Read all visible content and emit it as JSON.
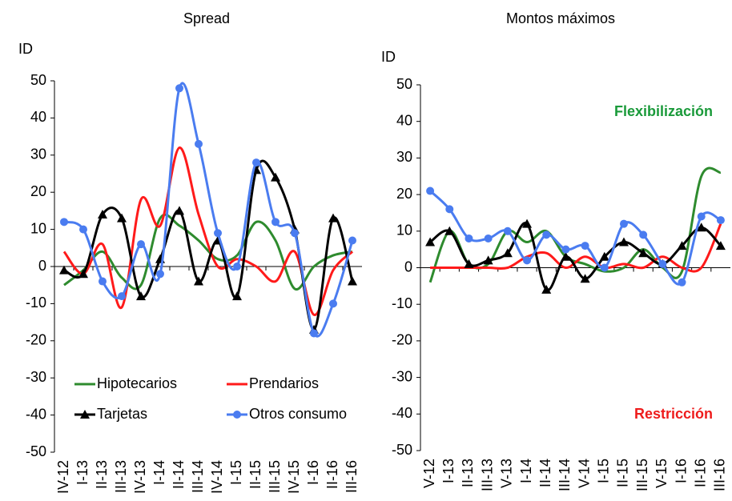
{
  "chart_data": [
    {
      "type": "line",
      "title": "Spread",
      "y_label": "ID",
      "categories": [
        "IV-12",
        "I-13",
        "II-13",
        "III-13",
        "IV-13",
        "I-14",
        "II-14",
        "III-14",
        "IV-14",
        "I-15",
        "II-15",
        "III-15",
        "IV-15",
        "I-16",
        "II-16",
        "III-16"
      ],
      "series": [
        {
          "name": "Hipotecarios",
          "color": "#2e8b2e",
          "marker": "none",
          "values": [
            -5,
            -1,
            4,
            -3,
            -5,
            13,
            11,
            7,
            2,
            3,
            12,
            7,
            -6,
            0,
            3,
            4
          ]
        },
        {
          "name": "Prendarios",
          "color": "#ff1a1a",
          "marker": "none",
          "values": [
            4,
            -2,
            6,
            -11,
            18,
            11,
            32,
            14,
            0,
            2,
            0,
            -4,
            4,
            -13,
            -1,
            4
          ]
        },
        {
          "name": "Tarjetas",
          "color": "#000000",
          "marker": "triangle",
          "values": [
            -1,
            -2,
            14,
            13,
            -8,
            2,
            15,
            -4,
            7,
            -8,
            26,
            24,
            10,
            -17,
            13,
            -4
          ]
        },
        {
          "name": "Otros consumo",
          "color": "#4a7cf0",
          "marker": "circle",
          "values": [
            12,
            10,
            -4,
            -8,
            6,
            -2,
            48,
            33,
            9,
            0,
            28,
            12,
            9,
            -18,
            -10,
            7
          ]
        }
      ],
      "ylim": [
        -50,
        50
      ],
      "yticks": [
        -50,
        -40,
        -30,
        -20,
        -10,
        0,
        10,
        20,
        30,
        40,
        50
      ],
      "legend": "lower center"
    },
    {
      "type": "line",
      "title": "Montos máximos",
      "y_label": "ID",
      "categories": [
        "V-12",
        "I-13",
        "II-13",
        "III-13",
        "V-13",
        "I-14",
        "II-14",
        "III-14",
        "V-14",
        "I-15",
        "II-15",
        "III-15",
        "V-15",
        "I-16",
        "II-16",
        "III-16"
      ],
      "series": [
        {
          "color": "#2e8b2e",
          "marker": "none",
          "values": [
            -4,
            10,
            1,
            1,
            10,
            7,
            10,
            3,
            1,
            -1,
            0,
            5,
            0,
            -1,
            25,
            26
          ]
        },
        {
          "color": "#ff1a1a",
          "marker": "none",
          "values": [
            0,
            0,
            0,
            0,
            0,
            3,
            4,
            0,
            3,
            0,
            1,
            0,
            3,
            0,
            0,
            12
          ]
        },
        {
          "color": "#000000",
          "marker": "triangle",
          "values": [
            7,
            10,
            1,
            2,
            4,
            12,
            -6,
            3,
            -3,
            3,
            7,
            4,
            1,
            6,
            11,
            6
          ]
        },
        {
          "color": "#4a7cf0",
          "marker": "circle",
          "values": [
            21,
            16,
            8,
            8,
            10,
            2,
            9,
            5,
            6,
            0,
            12,
            9,
            1,
            -4,
            14,
            13
          ]
        }
      ],
      "ylim": [
        -50,
        50
      ],
      "yticks": [
        -50,
        -40,
        -30,
        -20,
        -10,
        0,
        10,
        20,
        30,
        40,
        50
      ],
      "annotations": [
        {
          "text": "Flexibilización",
          "color": "#1a9a3a"
        },
        {
          "text": "Restricción",
          "color": "#ee1c1c"
        }
      ]
    }
  ]
}
